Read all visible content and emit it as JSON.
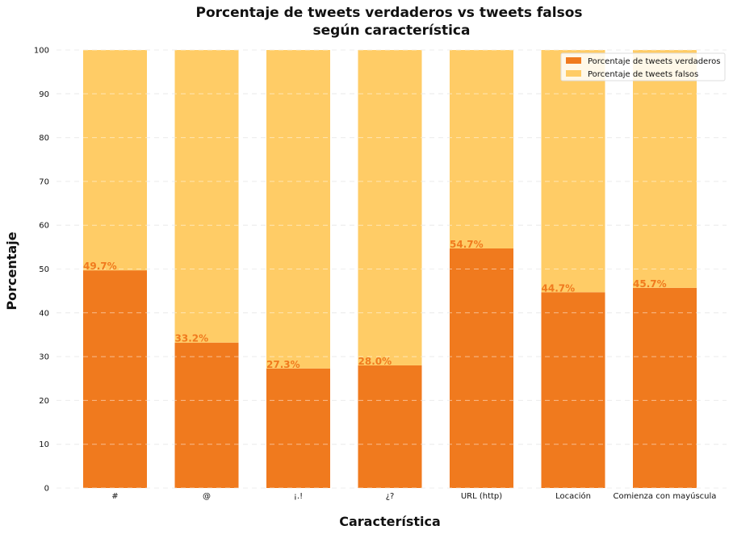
{
  "colors": {
    "true": "#F07A1E",
    "false": "#FFCC66",
    "label": "#F07A1E",
    "grid": "#dddddd"
  },
  "chart_data": {
    "type": "bar",
    "stacked": true,
    "title_lines": [
      "Porcentaje de tweets verdaderos vs tweets falsos",
      "según característica"
    ],
    "xlabel": "Característica",
    "ylabel": "Porcentaje",
    "ylim": [
      0,
      100
    ],
    "yticks": [
      0,
      10,
      20,
      30,
      40,
      50,
      60,
      70,
      80,
      90,
      100
    ],
    "grid": true,
    "legend_position": "top-right",
    "categories": [
      "#",
      "@",
      "¡.!",
      "¿?",
      "URL (http)",
      "Locación",
      "Comienza con mayúscula"
    ],
    "series": [
      {
        "name": "Porcentaje de tweets verdaderos",
        "color_key": "true",
        "values": [
          49.7,
          33.2,
          27.3,
          28.0,
          54.7,
          44.7,
          45.7
        ],
        "labels": [
          "49.7%",
          "33.2%",
          "27.3%",
          "28.0%",
          "54.7%",
          "44.7%",
          "45.7%"
        ]
      },
      {
        "name": "Porcentaje de tweets falsos",
        "color_key": "false",
        "values": [
          50.3,
          66.8,
          72.7,
          72.0,
          45.3,
          55.3,
          54.3
        ]
      }
    ]
  }
}
